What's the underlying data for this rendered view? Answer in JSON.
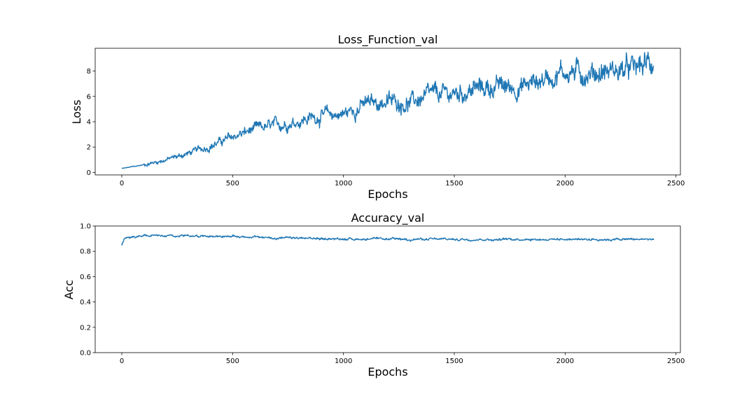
{
  "colors": {
    "series": "#1f77b4",
    "axes": "#000000",
    "background": "#ffffff"
  },
  "chart_data": [
    {
      "type": "line",
      "title": "Loss_Function_val",
      "xlabel": "Epochs",
      "ylabel": "Loss",
      "xlim": [
        -120,
        2520
      ],
      "ylim": [
        -0.2,
        9.8
      ],
      "xticks": [
        0,
        500,
        1000,
        1500,
        2000,
        2500
      ],
      "yticks": [
        0,
        2,
        4,
        6,
        8
      ],
      "ytick_format": "int",
      "grid": false,
      "series": [
        {
          "x": [
            0,
            100,
            200,
            300,
            400,
            500,
            600,
            700,
            800,
            900,
            1000,
            1100,
            1200,
            1300,
            1400,
            1500,
            1600,
            1700,
            1800,
            1900,
            2000,
            2100,
            2200,
            2300,
            2400
          ],
          "y": [
            0.3,
            0.6,
            1.0,
            1.5,
            2.1,
            2.8,
            3.4,
            3.7,
            4.1,
            4.5,
            4.6,
            5.4,
            5.6,
            5.5,
            6.1,
            6.2,
            6.6,
            6.8,
            6.7,
            7.4,
            8.0,
            7.8,
            8.0,
            8.1,
            8.7
          ]
        }
      ]
    },
    {
      "type": "line",
      "title": "Accuracy_val",
      "xlabel": "Epochs",
      "ylabel": "Acc",
      "xlim": [
        -120,
        2520
      ],
      "ylim": [
        0.0,
        1.0
      ],
      "xticks": [
        0,
        500,
        1000,
        1500,
        2000,
        2500
      ],
      "yticks": [
        0.0,
        0.2,
        0.4,
        0.6,
        0.8,
        1.0
      ],
      "ytick_format": "1dp",
      "grid": false,
      "series": [
        {
          "x": [
            0,
            10,
            50,
            100,
            200,
            300,
            400,
            500,
            600,
            700,
            800,
            900,
            1000,
            1100,
            1200,
            1300,
            1400,
            1500,
            1600,
            1700,
            1800,
            1900,
            2000,
            2100,
            2200,
            2300,
            2400
          ],
          "y": [
            0.85,
            0.9,
            0.915,
            0.92,
            0.925,
            0.925,
            0.92,
            0.918,
            0.912,
            0.905,
            0.903,
            0.9,
            0.898,
            0.897,
            0.896,
            0.896,
            0.895,
            0.895,
            0.894,
            0.894,
            0.897,
            0.895,
            0.896,
            0.896,
            0.894,
            0.895,
            0.895
          ]
        }
      ]
    }
  ]
}
